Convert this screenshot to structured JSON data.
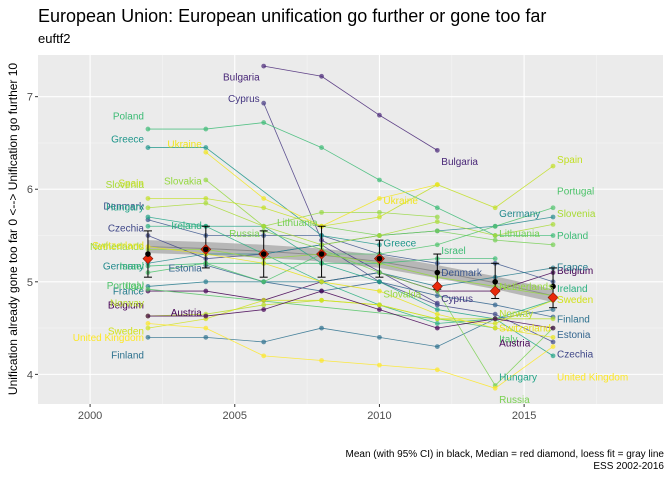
{
  "title": "European Union: European unification go further or gone too far",
  "subtitle": "euftf2",
  "caption": [
    "Mean (with 95% CI) in black, Median = red diamond, loess fit = gray line",
    "ESS 2002-2016"
  ],
  "chart_data": {
    "type": "line",
    "ylabel": "Unification already gone too far 0 <--> Unification go further 10",
    "xlabel": "",
    "xlim": [
      1998.2,
      2019.8
    ],
    "ylim": [
      3.68,
      7.45
    ],
    "x_ticks": [
      2000,
      2005,
      2010,
      2015
    ],
    "y_ticks": [
      4,
      5,
      6,
      7
    ],
    "series": [
      {
        "name": "Belgium",
        "color": "#440154",
        "points": [
          [
            2002,
            4.9
          ],
          [
            2004,
            4.9
          ],
          [
            2006,
            4.8
          ],
          [
            2008,
            5.0
          ],
          [
            2010,
            5.1
          ],
          [
            2012,
            4.9
          ],
          [
            2014,
            4.9
          ],
          [
            2016,
            5.1
          ]
        ],
        "first_label": [
          2002,
          4.75
        ],
        "last_label": [
          2016,
          5.12
        ]
      },
      {
        "name": "Bulgaria",
        "color": "#482677",
        "points": [
          [
            2006,
            7.33
          ],
          [
            2008,
            7.22
          ],
          [
            2010,
            6.8
          ],
          [
            2012,
            6.42
          ]
        ],
        "first_label": [
          2006,
          7.21
        ],
        "last_label": [
          2012,
          6.3
        ]
      },
      {
        "name": "Cyprus",
        "color": "#453781",
        "points": [
          [
            2006,
            6.93
          ],
          [
            2008,
            5.45
          ],
          [
            2012,
            4.77
          ]
        ],
        "first_label": [
          2006,
          6.98
        ],
        "last_label": [
          2012,
          4.82
        ]
      },
      {
        "name": "Czechia",
        "color": "#3f4788",
        "points": [
          [
            2002,
            5.5
          ],
          [
            2004,
            5.25
          ],
          [
            2006,
            5.3
          ],
          [
            2008,
            5.4
          ],
          [
            2010,
            5.0
          ],
          [
            2012,
            4.75
          ],
          [
            2014,
            4.65
          ],
          [
            2016,
            4.35
          ]
        ],
        "first_label": [
          2002,
          5.58
        ],
        "last_label": [
          2016,
          4.22
        ]
      },
      {
        "name": "Denmark",
        "color": "#39558c",
        "points": [
          [
            2002,
            5.67
          ],
          [
            2004,
            5.5
          ],
          [
            2006,
            5.5
          ],
          [
            2008,
            5.5
          ],
          [
            2010,
            5.3
          ],
          [
            2012,
            5.2
          ],
          [
            2014,
            5.2
          ],
          [
            2016,
            5.0
          ]
        ],
        "first_label": [
          2002,
          5.82
        ],
        "last_label": [
          2012,
          5.1
        ]
      },
      {
        "name": "Estonia",
        "color": "#32648e",
        "points": [
          [
            2004,
            5.18
          ],
          [
            2006,
            5.0
          ],
          [
            2008,
            4.9
          ],
          [
            2010,
            5.0
          ],
          [
            2012,
            4.85
          ],
          [
            2014,
            4.75
          ],
          [
            2016,
            4.62
          ]
        ],
        "first_label": [
          2004,
          5.15
        ],
        "last_label": [
          2016,
          4.43
        ]
      },
      {
        "name": "Finland",
        "color": "#2d718e",
        "points": [
          [
            2002,
            4.4
          ],
          [
            2004,
            4.4
          ],
          [
            2006,
            4.35
          ],
          [
            2008,
            4.5
          ],
          [
            2010,
            4.4
          ],
          [
            2012,
            4.3
          ],
          [
            2014,
            4.6
          ],
          [
            2016,
            4.7
          ]
        ],
        "first_label": [
          2002,
          4.21
        ],
        "last_label": [
          2016,
          4.6
        ]
      },
      {
        "name": "France",
        "color": "#287d8e",
        "points": [
          [
            2002,
            4.95
          ],
          [
            2004,
            5.0
          ],
          [
            2006,
            5.0
          ],
          [
            2008,
            5.0
          ],
          [
            2010,
            5.1
          ],
          [
            2012,
            4.95
          ],
          [
            2014,
            5.05
          ],
          [
            2016,
            5.15
          ]
        ],
        "first_label": [
          2002,
          4.9
        ],
        "last_label": [
          2016,
          5.16
        ]
      },
      {
        "name": "Germany",
        "color": "#238a8d",
        "points": [
          [
            2002,
            5.2
          ],
          [
            2004,
            5.3
          ],
          [
            2006,
            5.3
          ],
          [
            2008,
            5.4
          ],
          [
            2010,
            5.5
          ],
          [
            2012,
            5.55
          ],
          [
            2014,
            5.6
          ],
          [
            2016,
            5.7
          ]
        ],
        "first_label": [
          2002,
          5.17
        ],
        "last_label": [
          2014,
          5.74
        ]
      },
      {
        "name": "Greece",
        "color": "#1f968b",
        "points": [
          [
            2002,
            6.45
          ],
          [
            2004,
            6.45
          ],
          [
            2008,
            5.5
          ],
          [
            2010,
            5.4
          ]
        ],
        "first_label": [
          2002,
          6.54
        ],
        "last_label": [
          2010,
          5.42
        ]
      },
      {
        "name": "Hungary",
        "color": "#20a386",
        "points": [
          [
            2002,
            5.7
          ],
          [
            2004,
            5.6
          ],
          [
            2006,
            5.6
          ],
          [
            2008,
            5.2
          ],
          [
            2010,
            5.0
          ],
          [
            2012,
            4.7
          ],
          [
            2014,
            4.6
          ],
          [
            2016,
            4.2
          ]
        ],
        "first_label": [
          2002,
          5.81
        ],
        "last_label": [
          2014,
          3.97
        ]
      },
      {
        "name": "Ireland",
        "color": "#29af7f",
        "points": [
          [
            2002,
            5.6
          ],
          [
            2004,
            5.6
          ],
          [
            2006,
            5.3
          ],
          [
            2008,
            5.0
          ],
          [
            2010,
            4.75
          ],
          [
            2012,
            4.55
          ],
          [
            2014,
            4.6
          ],
          [
            2016,
            4.8
          ]
        ],
        "first_label": [
          2004,
          5.61
        ],
        "last_label": [
          2016,
          4.93
        ]
      },
      {
        "name": "Israel",
        "color": "#3dbc74",
        "points": [
          [
            2002,
            5.17
          ],
          [
            2004,
            5.2
          ],
          [
            2006,
            5.2
          ],
          [
            2008,
            5.2
          ],
          [
            2010,
            5.2
          ],
          [
            2012,
            5.25
          ],
          [
            2014,
            5.25
          ]
        ],
        "first_label": [
          2002,
          5.17
        ],
        "last_label": [
          2012,
          5.34
        ]
      },
      {
        "name": "Italy",
        "color": "#56c667",
        "points": [
          [
            2002,
            4.92
          ],
          [
            2012,
            4.6
          ],
          [
            2014,
            4.5
          ]
        ],
        "first_label": [
          2002,
          4.96
        ],
        "last_label": [
          2014,
          4.38
        ]
      },
      {
        "name": "Lithuania",
        "color": "#75d054",
        "points": [
          [
            2008,
            5.6
          ],
          [
            2010,
            5.5
          ],
          [
            2012,
            5.55
          ],
          [
            2014,
            5.45
          ],
          [
            2016,
            5.4
          ]
        ],
        "first_label": [
          2008,
          5.64
        ],
        "last_label": [
          2014,
          5.52
        ]
      },
      {
        "name": "Netherlands",
        "color": "#95d840",
        "points": [
          [
            2002,
            5.35
          ],
          [
            2004,
            5.35
          ],
          [
            2006,
            5.25
          ],
          [
            2008,
            5.3
          ],
          [
            2010,
            5.2
          ],
          [
            2012,
            5.05
          ],
          [
            2014,
            4.95
          ],
          [
            2016,
            4.85
          ]
        ],
        "first_label": [
          2002,
          5.38
        ],
        "last_label": [
          2014,
          4.95
        ]
      },
      {
        "name": "Norway",
        "color": "#b8de29",
        "points": [
          [
            2002,
            4.63
          ],
          [
            2004,
            4.65
          ],
          [
            2006,
            4.75
          ],
          [
            2008,
            4.8
          ],
          [
            2010,
            4.75
          ],
          [
            2012,
            4.6
          ],
          [
            2014,
            4.6
          ],
          [
            2016,
            4.6
          ]
        ],
        "first_label": [
          2002,
          4.77
        ],
        "last_label": [
          2014,
          4.66
        ]
      },
      {
        "name": "Poland",
        "color": "#3cbb75",
        "points": [
          [
            2002,
            6.65
          ],
          [
            2004,
            6.65
          ],
          [
            2006,
            6.72
          ],
          [
            2008,
            6.45
          ],
          [
            2010,
            6.1
          ],
          [
            2012,
            5.8
          ],
          [
            2014,
            5.5
          ],
          [
            2016,
            5.5
          ]
        ],
        "first_label": [
          2002,
          6.79
        ],
        "last_label": [
          2016,
          5.5
        ]
      },
      {
        "name": "Portugal",
        "color": "#4ec36b",
        "points": [
          [
            2002,
            5.1
          ],
          [
            2004,
            5.2
          ],
          [
            2006,
            5.0
          ],
          [
            2008,
            5.3
          ],
          [
            2010,
            5.3
          ],
          [
            2012,
            5.4
          ],
          [
            2014,
            5.6
          ],
          [
            2016,
            5.8
          ]
        ],
        "first_label": [
          2002,
          4.96
        ],
        "last_label": [
          2016,
          5.98
        ]
      },
      {
        "name": "Russia",
        "color": "#7ad151",
        "points": [
          [
            2006,
            5.55
          ],
          [
            2008,
            5.35
          ],
          [
            2010,
            5.1
          ],
          [
            2012,
            4.9
          ],
          [
            2014,
            3.88
          ],
          [
            2016,
            4.5
          ]
        ],
        "first_label": [
          2006,
          5.52
        ],
        "last_label": [
          2014,
          3.73
        ]
      },
      {
        "name": "Slovakia",
        "color": "#95d840",
        "points": [
          [
            2004,
            6.1
          ],
          [
            2006,
            5.6
          ],
          [
            2008,
            5.75
          ],
          [
            2010,
            5.75
          ],
          [
            2012,
            5.7
          ]
        ],
        "first_label": [
          2004,
          6.09
        ],
        "last_label": [
          2010,
          4.87
        ]
      },
      {
        "name": "Slovenia",
        "color": "#a8db34",
        "points": [
          [
            2002,
            5.8
          ],
          [
            2004,
            5.85
          ],
          [
            2006,
            5.6
          ],
          [
            2008,
            5.4
          ],
          [
            2010,
            5.5
          ],
          [
            2012,
            5.65
          ],
          [
            2014,
            5.5
          ],
          [
            2016,
            5.62
          ]
        ],
        "first_label": [
          2002,
          6.05
        ],
        "last_label": [
          2016,
          5.74
        ]
      },
      {
        "name": "Spain",
        "color": "#c2df23",
        "points": [
          [
            2002,
            5.9
          ],
          [
            2004,
            5.9
          ],
          [
            2006,
            5.8
          ],
          [
            2008,
            5.6
          ],
          [
            2010,
            5.7
          ],
          [
            2012,
            6.05
          ],
          [
            2014,
            5.8
          ],
          [
            2016,
            6.25
          ]
        ],
        "first_label": [
          2002,
          6.07
        ],
        "last_label": [
          2016,
          6.32
        ]
      },
      {
        "name": "Sweden",
        "color": "#d2e21b",
        "points": [
          [
            2002,
            4.5
          ],
          [
            2004,
            4.6
          ],
          [
            2006,
            4.8
          ],
          [
            2008,
            4.8
          ],
          [
            2010,
            4.75
          ],
          [
            2012,
            4.6
          ],
          [
            2014,
            4.55
          ],
          [
            2016,
            4.8
          ]
        ],
        "first_label": [
          2002,
          4.47
        ],
        "last_label": [
          2016,
          4.81
        ]
      },
      {
        "name": "Switzerland",
        "color": "#e7e419",
        "points": [
          [
            2002,
            5.38
          ],
          [
            2004,
            5.3
          ],
          [
            2006,
            5.2
          ],
          [
            2008,
            5.0
          ],
          [
            2010,
            4.9
          ],
          [
            2012,
            4.65
          ],
          [
            2014,
            4.5
          ],
          [
            2016,
            4.4
          ]
        ],
        "first_label": [
          2002,
          5.39
        ],
        "last_label": [
          2014,
          4.5
        ]
      },
      {
        "name": "Ukraine",
        "color": "#f1e51d",
        "points": [
          [
            2004,
            6.4
          ],
          [
            2006,
            5.9
          ],
          [
            2008,
            5.6
          ],
          [
            2010,
            5.9
          ],
          [
            2012,
            6.05
          ]
        ],
        "first_label": [
          2004,
          6.49
        ],
        "last_label": [
          2010,
          5.88
        ]
      },
      {
        "name": "United Kingdom",
        "color": "#fde725",
        "points": [
          [
            2002,
            4.55
          ],
          [
            2004,
            4.5
          ],
          [
            2006,
            4.2
          ],
          [
            2008,
            4.15
          ],
          [
            2010,
            4.1
          ],
          [
            2012,
            4.05
          ],
          [
            2014,
            3.85
          ],
          [
            2016,
            4.3
          ]
        ],
        "first_label": [
          2002,
          4.4
        ],
        "last_label": [
          2016,
          3.97
        ]
      },
      {
        "name": "Austria",
        "color": "#440154",
        "points": [
          [
            2002,
            4.63
          ],
          [
            2004,
            4.63
          ],
          [
            2006,
            4.7
          ],
          [
            2008,
            4.9
          ],
          [
            2010,
            4.7
          ],
          [
            2012,
            4.5
          ],
          [
            2014,
            4.6
          ],
          [
            2016,
            4.5
          ]
        ],
        "first_label": [
          2004,
          4.67
        ],
        "last_label": [
          2014,
          4.34
        ]
      }
    ],
    "summary": {
      "x": [
        2002,
        2004,
        2006,
        2008,
        2010,
        2012,
        2014,
        2016
      ],
      "mean": [
        5.3,
        5.35,
        5.3,
        5.3,
        5.25,
        5.1,
        5.0,
        4.95
      ],
      "ci_low": [
        5.05,
        5.15,
        5.05,
        5.05,
        5.05,
        4.92,
        4.82,
        4.72
      ],
      "ci_high": [
        5.55,
        5.6,
        5.55,
        5.6,
        5.45,
        5.3,
        5.2,
        5.15
      ],
      "median": [
        5.25,
        5.35,
        5.3,
        5.3,
        5.25,
        4.95,
        4.9,
        4.83
      ],
      "loess": [
        5.38,
        5.36,
        5.33,
        5.29,
        5.22,
        5.11,
        4.99,
        4.85
      ]
    }
  }
}
